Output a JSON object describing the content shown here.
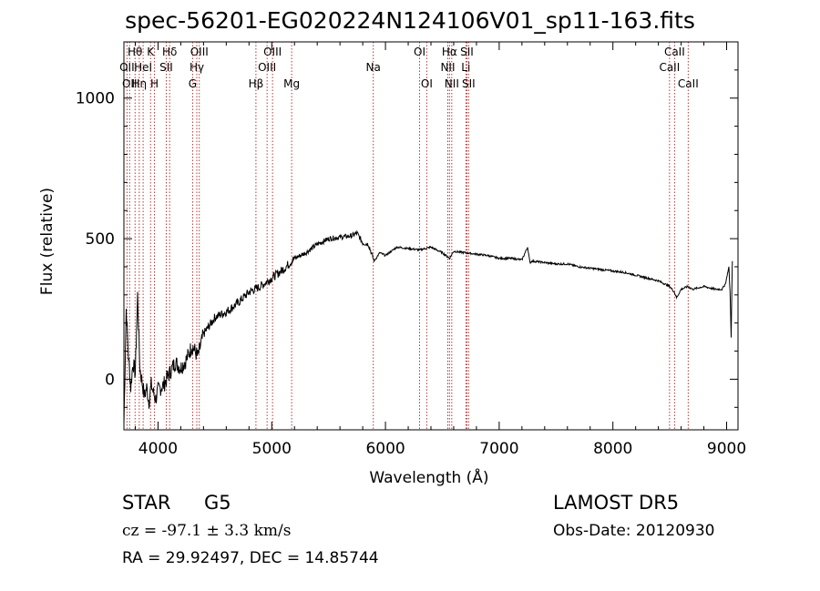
{
  "title": "spec-56201-EG020224N124106V01_sp11-163.fits",
  "info": {
    "object_class": "STAR",
    "subclass": "G5",
    "survey": "LAMOST DR5",
    "redshift_text": "cz = -97.1 ± 3.3 km/s",
    "obs_date_text": "Obs-Date: 20120930",
    "coords_text": "RA =  29.92497, DEC =  14.85744"
  },
  "colors": {
    "line_markers": "#b22222",
    "spectrum": "#000000",
    "axes": "#000000"
  },
  "chart_data": {
    "type": "line",
    "xlabel": "Wavelength (Å)",
    "ylabel": "Flux (relative)",
    "xlim": [
      3700,
      9100
    ],
    "ylim": [
      -180,
      1200
    ],
    "xticks": [
      4000,
      5000,
      6000,
      7000,
      8000,
      9000
    ],
    "yticks": [
      0,
      500,
      1000
    ],
    "x_minor_step": 200,
    "y_minor_step": 100,
    "spectrum": {
      "x": [
        3700,
        3720,
        3740,
        3760,
        3780,
        3800,
        3820,
        3840,
        3860,
        3880,
        3900,
        3920,
        3940,
        3960,
        3980,
        4000,
        4050,
        4100,
        4150,
        4200,
        4250,
        4300,
        4350,
        4400,
        4450,
        4500,
        4600,
        4700,
        4800,
        4900,
        5000,
        5100,
        5200,
        5300,
        5400,
        5500,
        5600,
        5700,
        5750,
        5800,
        5850,
        5900,
        5950,
        6000,
        6100,
        6200,
        6300,
        6400,
        6500,
        6563,
        6600,
        6700,
        6800,
        6900,
        7000,
        7100,
        7200,
        7250,
        7270,
        7290,
        7300,
        7400,
        7500,
        7600,
        7700,
        7800,
        7900,
        8000,
        8100,
        8200,
        8300,
        8400,
        8500,
        8540,
        8560,
        8600,
        8660,
        8700,
        8800,
        8900,
        8960,
        8990,
        9000,
        9020,
        9030,
        9040,
        9050
      ],
      "y": [
        -160,
        250,
        80,
        -30,
        60,
        20,
        300,
        40,
        -10,
        -60,
        -30,
        -80,
        -20,
        -50,
        -70,
        -40,
        -20,
        20,
        60,
        40,
        70,
        120,
        80,
        160,
        190,
        220,
        240,
        270,
        310,
        330,
        360,
        390,
        430,
        450,
        480,
        500,
        505,
        510,
        520,
        485,
        480,
        420,
        450,
        440,
        470,
        465,
        460,
        470,
        450,
        430,
        455,
        450,
        445,
        440,
        430,
        430,
        425,
        470,
        415,
        420,
        420,
        415,
        410,
        410,
        400,
        395,
        390,
        385,
        380,
        370,
        360,
        350,
        330,
        310,
        290,
        320,
        330,
        320,
        330,
        320,
        320,
        340,
        360,
        400,
        310,
        150,
        420
      ]
    },
    "lines": [
      {
        "wavelength": 3727,
        "label": "OII",
        "row": 2
      },
      {
        "wavelength": 3750,
        "label": "OII",
        "row": 3
      },
      {
        "wavelength": 3798,
        "label": "Hθ",
        "row": 1
      },
      {
        "wavelength": 3835,
        "label": "Hη",
        "row": 3
      },
      {
        "wavelength": 3869,
        "label": "HeI",
        "row": 2
      },
      {
        "wavelength": 3934,
        "label": "K",
        "row": 1
      },
      {
        "wavelength": 3969,
        "label": "H",
        "row": 3
      },
      {
        "wavelength": 4072,
        "label": "SII",
        "row": 2
      },
      {
        "wavelength": 4102,
        "label": "Hδ",
        "row": 1
      },
      {
        "wavelength": 4304,
        "label": "G",
        "row": 3
      },
      {
        "wavelength": 4341,
        "label": "Hγ",
        "row": 2
      },
      {
        "wavelength": 4363,
        "label": "OIII",
        "row": 1
      },
      {
        "wavelength": 4861,
        "label": "Hβ",
        "row": 3
      },
      {
        "wavelength": 4959,
        "label": "OIII",
        "row": 2
      },
      {
        "wavelength": 5007,
        "label": "OIII",
        "row": 1
      },
      {
        "wavelength": 5175,
        "label": "Mg",
        "row": 3
      },
      {
        "wavelength": 5893,
        "label": "Na",
        "row": 2
      },
      {
        "wavelength": 6300,
        "label": "OI",
        "row": 1
      },
      {
        "wavelength": 6363,
        "label": "OI",
        "row": 3
      },
      {
        "wavelength": 6548,
        "label": "NII",
        "row": 2
      },
      {
        "wavelength": 6563,
        "label": "Hα",
        "row": 1
      },
      {
        "wavelength": 6583,
        "label": "NII",
        "row": 3
      },
      {
        "wavelength": 6707,
        "label": "Li",
        "row": 2
      },
      {
        "wavelength": 6716,
        "label": "SII",
        "row": 1
      },
      {
        "wavelength": 6731,
        "label": "SII",
        "row": 3
      },
      {
        "wavelength": 8498,
        "label": "CaII",
        "row": 2
      },
      {
        "wavelength": 8542,
        "label": "CaII",
        "row": 1
      },
      {
        "wavelength": 8662,
        "label": "CaII",
        "row": 3
      }
    ]
  }
}
